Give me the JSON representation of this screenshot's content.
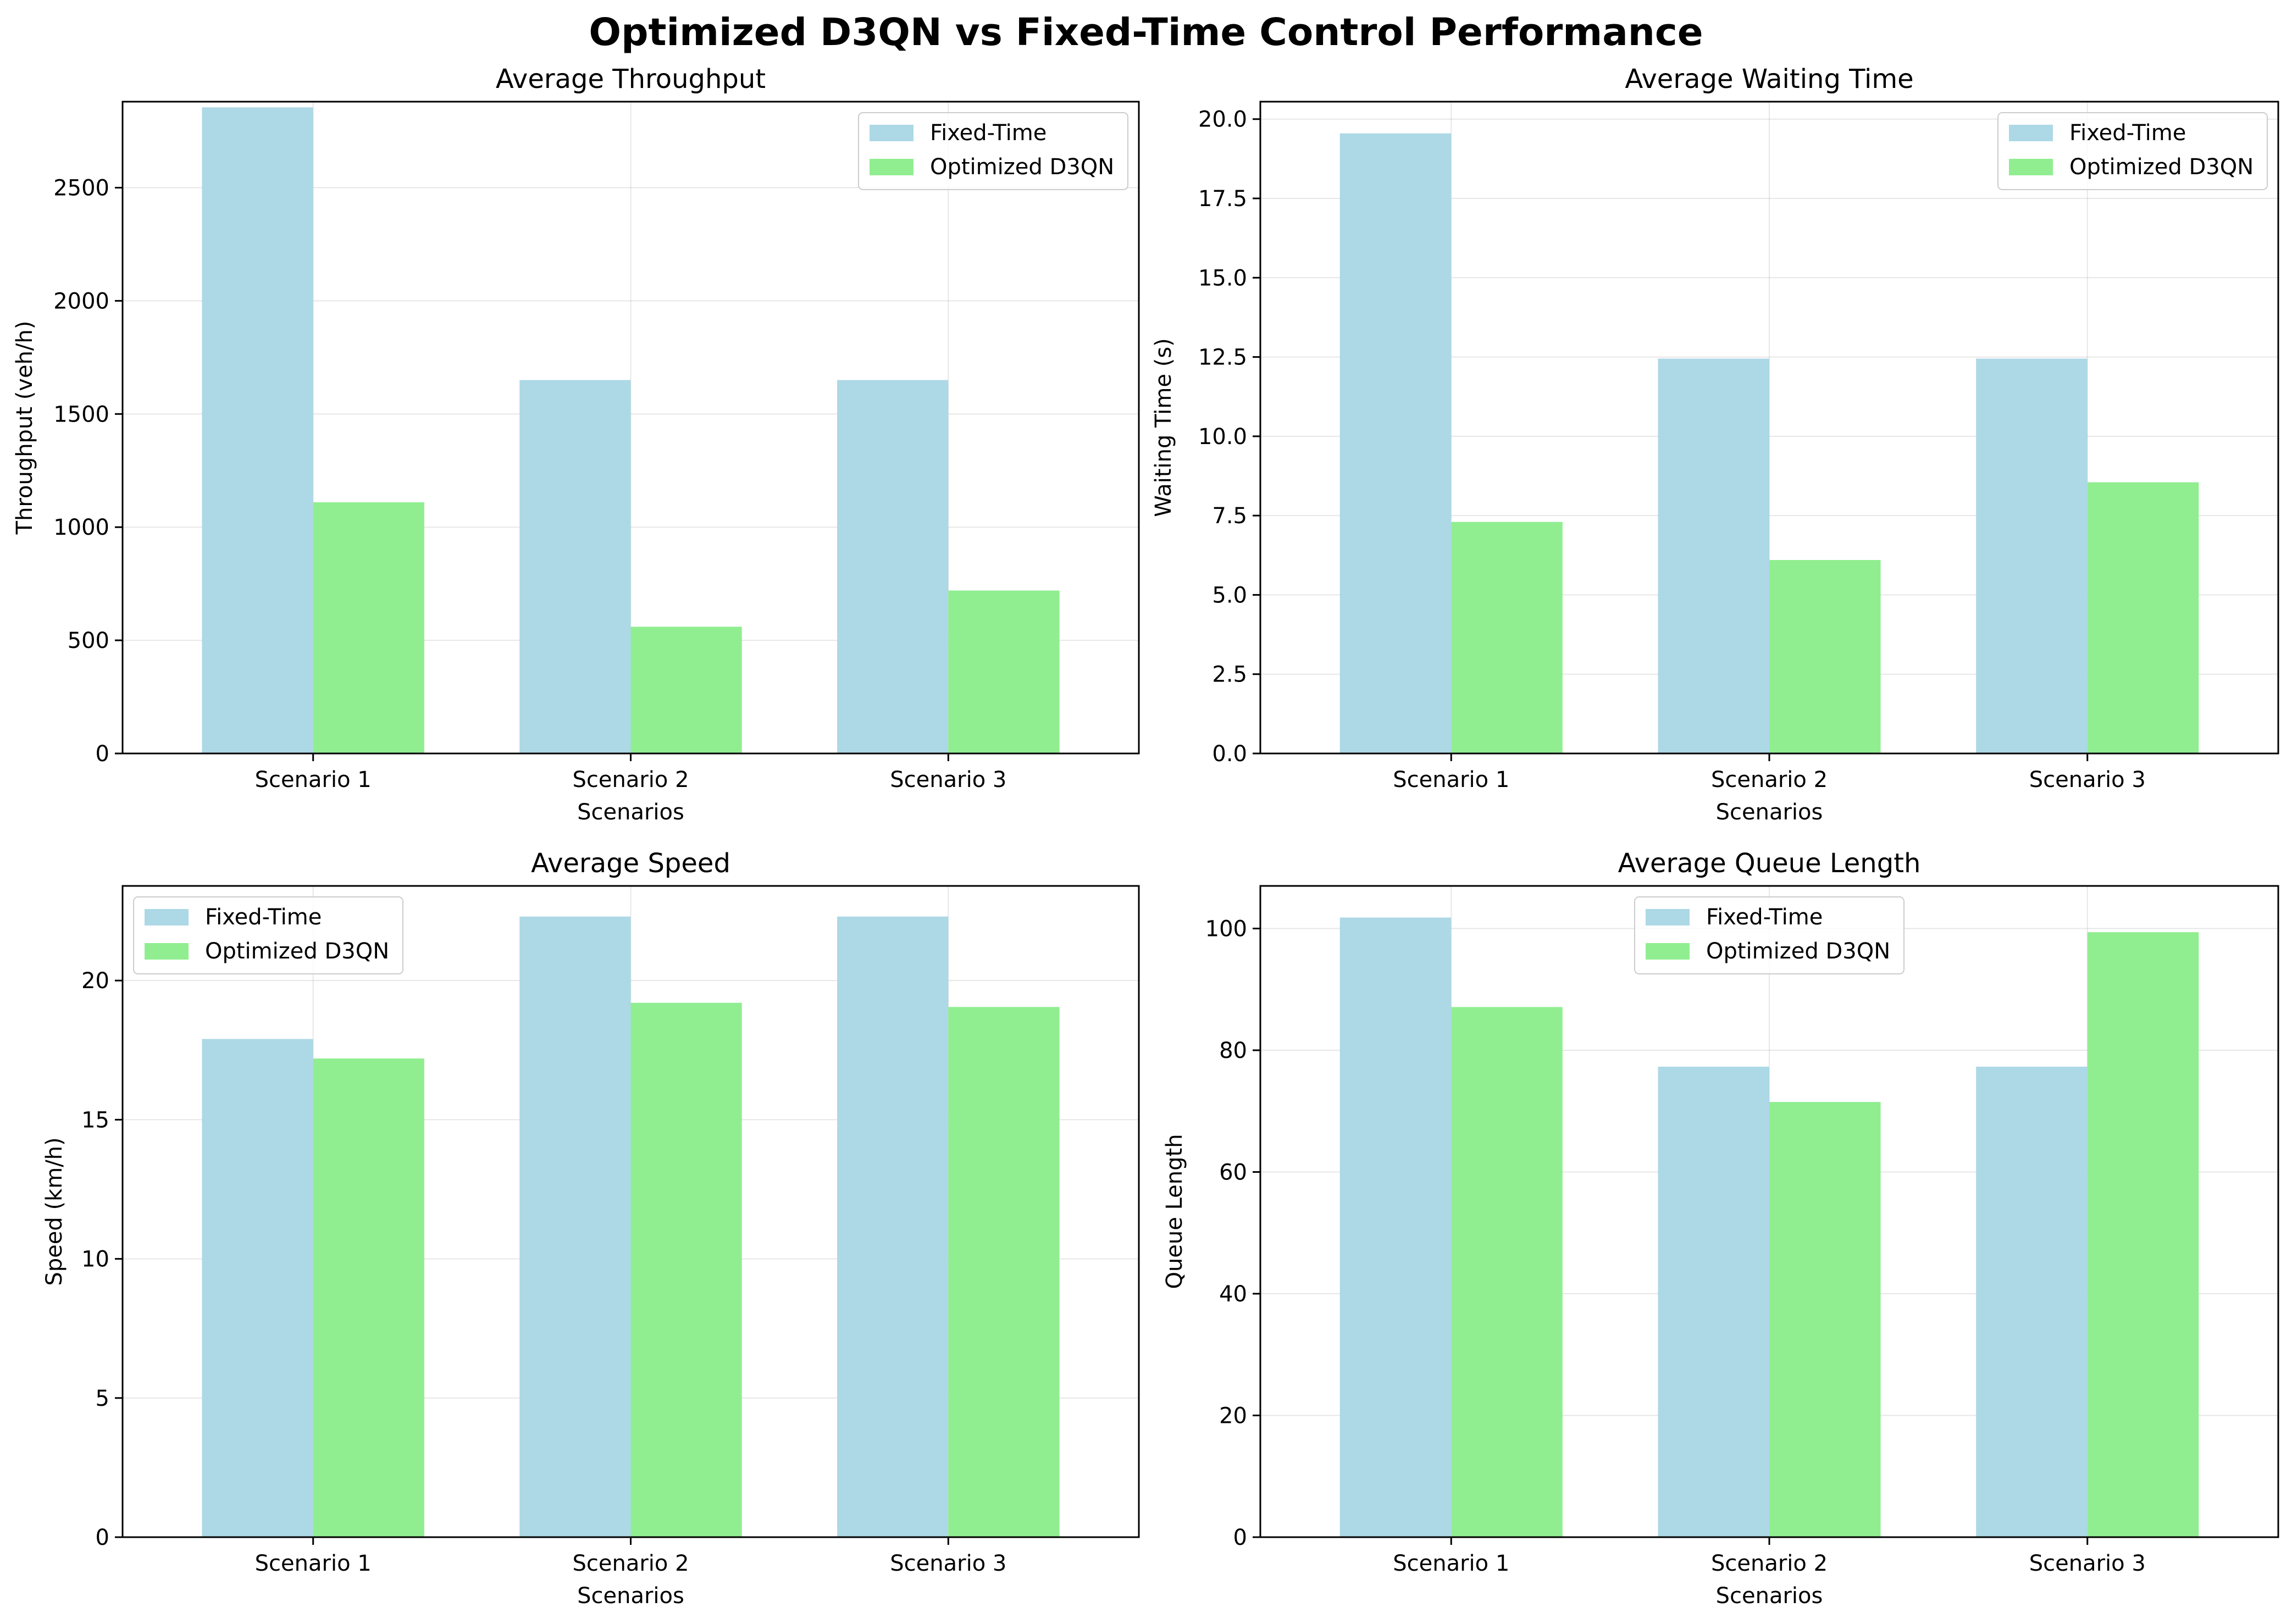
{
  "figure_title": "Optimized D3QN vs Fixed-Time Control Performance",
  "colors": {
    "fixed": "#add8e6",
    "d3qn": "#90ee90",
    "grid": "#b0b0b0"
  },
  "chart_data": [
    {
      "type": "bar",
      "title": "Average Throughput",
      "xlabel": "Scenarios",
      "ylabel": "Throughput (veh/h)",
      "categories": [
        "Scenario 1",
        "Scenario 2",
        "Scenario 3"
      ],
      "ylim": [
        0,
        2880
      ],
      "yticks": [
        0,
        500,
        1000,
        1500,
        2000,
        2500
      ],
      "ytick_labels": [
        "0",
        "500",
        "1000",
        "1500",
        "2000",
        "2500"
      ],
      "legend_position": "upper right",
      "grid": true,
      "series": [
        {
          "name": "Fixed-Time",
          "values": [
            2855,
            1650,
            1650
          ]
        },
        {
          "name": "Optimized D3QN",
          "values": [
            1110,
            560,
            720
          ]
        }
      ]
    },
    {
      "type": "bar",
      "title": "Average Waiting Time",
      "xlabel": "Scenarios",
      "ylabel": "Waiting Time (s)",
      "categories": [
        "Scenario 1",
        "Scenario 2",
        "Scenario 3"
      ],
      "ylim": [
        0,
        20.55
      ],
      "yticks": [
        0,
        2.5,
        5,
        7.5,
        10,
        12.5,
        15,
        17.5,
        20
      ],
      "ytick_labels": [
        "0.0",
        "2.5",
        "5.0",
        "7.5",
        "10.0",
        "12.5",
        "15.0",
        "17.5",
        "20.0"
      ],
      "legend_position": "upper right",
      "grid": true,
      "series": [
        {
          "name": "Fixed-Time",
          "values": [
            19.55,
            12.45,
            12.45
          ]
        },
        {
          "name": "Optimized D3QN",
          "values": [
            7.3,
            6.1,
            8.55
          ]
        }
      ]
    },
    {
      "type": "bar",
      "title": "Average Speed",
      "xlabel": "Scenarios",
      "ylabel": "Speed (km/h)",
      "categories": [
        "Scenario 1",
        "Scenario 2",
        "Scenario 3"
      ],
      "ylim": [
        0,
        23.4
      ],
      "yticks": [
        0,
        5,
        10,
        15,
        20
      ],
      "ytick_labels": [
        "0",
        "5",
        "10",
        "15",
        "20"
      ],
      "legend_position": "upper left",
      "grid": true,
      "series": [
        {
          "name": "Fixed-Time",
          "values": [
            17.9,
            22.3,
            22.3
          ]
        },
        {
          "name": "Optimized D3QN",
          "values": [
            17.2,
            19.2,
            19.05
          ]
        }
      ]
    },
    {
      "type": "bar",
      "title": "Average Queue Length",
      "xlabel": "Scenarios",
      "ylabel": "Queue Length",
      "categories": [
        "Scenario 1",
        "Scenario 2",
        "Scenario 3"
      ],
      "ylim": [
        0,
        107
      ],
      "yticks": [
        0,
        20,
        40,
        60,
        80,
        100
      ],
      "ytick_labels": [
        "0",
        "20",
        "40",
        "60",
        "80",
        "100"
      ],
      "legend_position": "upper center",
      "grid": true,
      "series": [
        {
          "name": "Fixed-Time",
          "values": [
            101.8,
            77.3,
            77.3
          ]
        },
        {
          "name": "Optimized D3QN",
          "values": [
            87.1,
            71.5,
            99.4
          ]
        }
      ]
    }
  ]
}
